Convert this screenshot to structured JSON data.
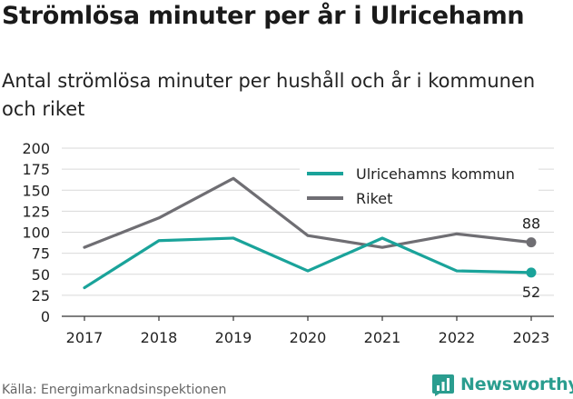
{
  "header": {
    "title": "Strömlösa minuter per år i Ulricehamn",
    "subtitle": "Antal strömlösa minuter per hushåll och år i kommunen och riket"
  },
  "footer": {
    "source": "Källa: Energimarknadsinspektionen",
    "brand": "Newsworthy"
  },
  "colors": {
    "kommun": "#1aa39a",
    "riket": "#6f6e73",
    "grid": "#d9d9d9",
    "brand": "#2a9d8f"
  },
  "icons": {
    "brand": "bar-chart-speech-icon"
  },
  "chart_data": {
    "type": "line",
    "categories": [
      "2017",
      "2018",
      "2019",
      "2020",
      "2021",
      "2022",
      "2023"
    ],
    "series": [
      {
        "name": "Ulricehamns kommun",
        "values": [
          34,
          90,
          93,
          54,
          93,
          54,
          52
        ]
      },
      {
        "name": "Riket",
        "values": [
          82,
          117,
          164,
          96,
          82,
          98,
          88
        ]
      }
    ],
    "end_labels": [
      "52",
      "88"
    ],
    "ylim": [
      0,
      200
    ],
    "yticks": [
      0,
      25,
      50,
      75,
      100,
      125,
      150,
      175,
      200
    ],
    "grid": true,
    "legend_position": "top-right"
  }
}
